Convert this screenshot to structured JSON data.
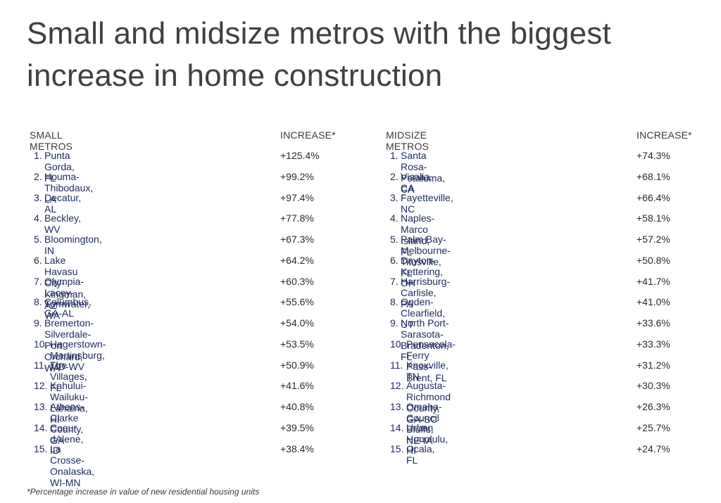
{
  "title": "Small and midsize metros with the biggest increase in home construction",
  "small": {
    "header_name": "SMALL METROS",
    "header_increase": "INCREASE*",
    "rows": [
      {
        "rank": "1.",
        "name": "Punta Gorda, FL",
        "increase": "+125.4%"
      },
      {
        "rank": "2.",
        "name": "Houma-Thibodaux, LA",
        "increase": "+99.2%"
      },
      {
        "rank": "3.",
        "name": "Decatur, AL",
        "increase": "+97.4%"
      },
      {
        "rank": "4.",
        "name": "Beckley, WV",
        "increase": "+77.8%"
      },
      {
        "rank": "5.",
        "name": "Bloomington, IN",
        "increase": "+67.3%"
      },
      {
        "rank": "6.",
        "name": "Lake Havasu City-Kingman, AZ",
        "increase": "+64.2%"
      },
      {
        "rank": "7.",
        "name": "Olympia-Lacey-Tumwater, WA",
        "increase": "+60.3%"
      },
      {
        "rank": "8.",
        "name": "Columbus, GA-AL",
        "increase": "+55.6%"
      },
      {
        "rank": "9.",
        "name": "Bremerton-Silverdale-Port Orchard, WA",
        "increase": "+54.0%"
      },
      {
        "rank": "10.",
        "name": "Hagerstown-Martinsburg, MD-WV",
        "increase": "+53.5%"
      },
      {
        "rank": "11.",
        "name": "The Villages, FL",
        "increase": "+50.9%"
      },
      {
        "rank": "12.",
        "name": "Kahului-Wailuku-Lahaina, HI",
        "increase": "+41.6%"
      },
      {
        "rank": "13.",
        "name": "Athens-Clarke County, GA",
        "increase": "+40.8%"
      },
      {
        "rank": "14.",
        "name": "Coeur dAlene, ID",
        "increase": "+39.5%"
      },
      {
        "rank": "15.",
        "name": "La Crosse-Onalaska, WI-MN",
        "increase": "+38.4%"
      }
    ]
  },
  "midsize": {
    "header_name": "MIDSIZE METROS",
    "header_increase": "INCREASE*",
    "rows": [
      {
        "rank": "1.",
        "name": "Santa Rosa-Petaluma, CA",
        "increase": "+74.3%"
      },
      {
        "rank": "2.",
        "name": "Visalia, CA",
        "increase": "+68.1%"
      },
      {
        "rank": "3.",
        "name": "Fayetteville, NC",
        "increase": "+66.4%"
      },
      {
        "rank": "4.",
        "name": "Naples-Marco Island, FL",
        "increase": "+58.1%"
      },
      {
        "rank": "5.",
        "name": "Palm Bay-Melbourne-Titusville, FL",
        "increase": "+57.2%"
      },
      {
        "rank": "6.",
        "name": "Dayton-Kettering, OH",
        "increase": "+50.8%"
      },
      {
        "rank": "7.",
        "name": "Harrisburg-Carlisle, PA",
        "increase": "+41.7%"
      },
      {
        "rank": "8.",
        "name": "Ogden-Clearfield, UT",
        "increase": "+41.0%"
      },
      {
        "rank": "9.",
        "name": "North Port-Sarasota-Bradenton, FL",
        "increase": "+33.6%"
      },
      {
        "rank": "10.",
        "name": "Pensacola-Ferry Pass-Brent, FL",
        "increase": "+33.3%"
      },
      {
        "rank": "11.",
        "name": "Knoxville, TN",
        "increase": "+31.2%"
      },
      {
        "rank": "12.",
        "name": "Augusta-Richmond County, GA-SC",
        "increase": "+30.3%"
      },
      {
        "rank": "13.",
        "name": "Omaha-Council Bluffs, NE-IA",
        "increase": "+26.3%"
      },
      {
        "rank": "14.",
        "name": "Urban Honolulu, HI",
        "increase": "+25.7%"
      },
      {
        "rank": "15.",
        "name": "Ocala, FL",
        "increase": "+24.7%"
      }
    ]
  },
  "footnote": "*Percentage increase in value of new residential housing units"
}
